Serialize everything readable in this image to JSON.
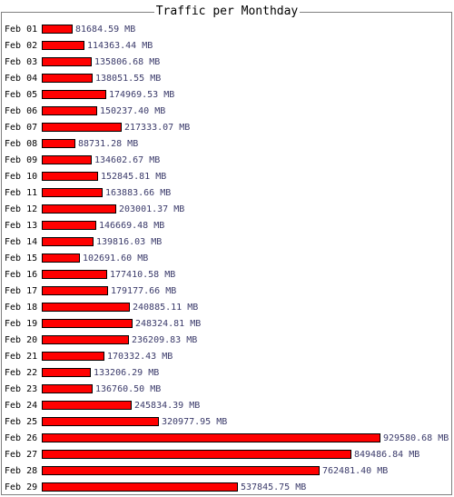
{
  "chart_data": {
    "type": "bar",
    "orientation": "horizontal",
    "title": "Traffic per Monthday",
    "unit": "MB",
    "bar_color": "#ff0000",
    "categories": [
      "Feb 01",
      "Feb 02",
      "Feb 03",
      "Feb 04",
      "Feb 05",
      "Feb 06",
      "Feb 07",
      "Feb 08",
      "Feb 09",
      "Feb 10",
      "Feb 11",
      "Feb 12",
      "Feb 13",
      "Feb 14",
      "Feb 15",
      "Feb 16",
      "Feb 17",
      "Feb 18",
      "Feb 19",
      "Feb 20",
      "Feb 21",
      "Feb 22",
      "Feb 23",
      "Feb 24",
      "Feb 25",
      "Feb 26",
      "Feb 27",
      "Feb 28",
      "Feb 29"
    ],
    "values": [
      81684.59,
      114363.44,
      135806.68,
      138051.55,
      174969.53,
      150237.4,
      217333.07,
      88731.28,
      134602.67,
      152845.81,
      163883.66,
      203001.37,
      146669.48,
      139816.03,
      102691.6,
      177410.58,
      179177.66,
      240885.11,
      248324.81,
      236209.83,
      170332.43,
      133206.29,
      136760.5,
      245834.39,
      320977.95,
      929580.68,
      849486.84,
      762481.4,
      537845.75
    ],
    "value_labels": [
      "81684.59 MB",
      "114363.44 MB",
      "135806.68 MB",
      "138051.55 MB",
      "174969.53 MB",
      "150237.40 MB",
      "217333.07 MB",
      "88731.28 MB",
      "134602.67 MB",
      "152845.81 MB",
      "163883.66 MB",
      "203001.37 MB",
      "146669.48 MB",
      "139816.03 MB",
      "102691.60 MB",
      "177410.58 MB",
      "179177.66 MB",
      "240885.11 MB",
      "248324.81 MB",
      "236209.83 MB",
      "170332.43 MB",
      "133206.29 MB",
      "136760.50 MB",
      "245834.39 MB",
      "320977.95 MB",
      "929580.68 MB",
      "849486.84 MB",
      "762481.40 MB",
      "537845.75 MB"
    ]
  }
}
